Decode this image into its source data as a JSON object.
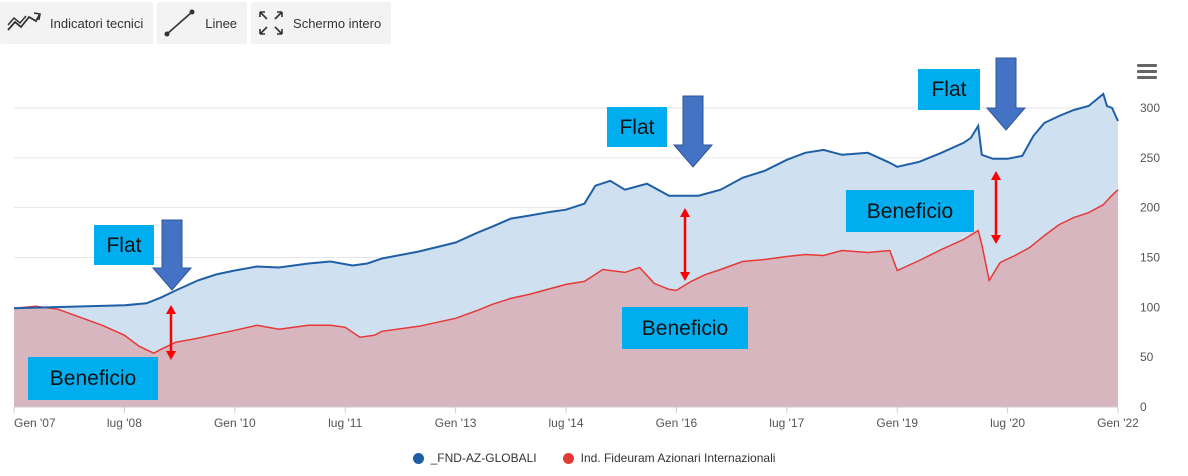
{
  "toolbar": {
    "indicators_label": "Indicatori tecnici",
    "lines_label": "Linee",
    "fullscreen_label": "Schermo intero"
  },
  "colors": {
    "fund_line": "#1f5fa6",
    "fund_fill": "#cfe0f0",
    "index_line": "#e53935",
    "index_fill": "#d8b6c0",
    "arrow_blue": "#4472c4",
    "arrow_red": "#ff0000",
    "callout_bg": "#00aeef"
  },
  "annotations": {
    "flat_1": "Flat",
    "flat_2": "Flat",
    "flat_3": "Flat",
    "beneficio_1": "Beneficio",
    "beneficio_2": "Beneficio",
    "beneficio_3": "Beneficio"
  },
  "chart_data": {
    "type": "area",
    "title": "",
    "xlabel": "",
    "ylabel": "",
    "xlim": [
      2007.0,
      2022.0
    ],
    "ylim": [
      0,
      300
    ],
    "y_axis_side": "right",
    "yticks": [
      0,
      50,
      100,
      150,
      200,
      250,
      300
    ],
    "xtick_labels": [
      {
        "t": 2007.0,
        "label": "Gen '07"
      },
      {
        "t": 2008.5,
        "label": "lug '08"
      },
      {
        "t": 2010.0,
        "label": "Gen '10"
      },
      {
        "t": 2011.5,
        "label": "lug '11"
      },
      {
        "t": 2013.0,
        "label": "Gen '13"
      },
      {
        "t": 2014.5,
        "label": "lug '14"
      },
      {
        "t": 2016.0,
        "label": "Gen '16"
      },
      {
        "t": 2017.5,
        "label": "lug '17"
      },
      {
        "t": 2019.0,
        "label": "Gen '19"
      },
      {
        "t": 2020.5,
        "label": "lug '20"
      },
      {
        "t": 2022.0,
        "label": "Gen '22"
      }
    ],
    "grid": true,
    "legend": "bottom",
    "series": [
      {
        "name": "_FND-AZ-GLOBALI",
        "x": [
          2007.0,
          2007.5,
          2008.0,
          2008.5,
          2008.8,
          2009.0,
          2009.2,
          2009.5,
          2009.75,
          2010.0,
          2010.3,
          2010.6,
          2011.0,
          2011.3,
          2011.6,
          2011.8,
          2012.0,
          2012.5,
          2013.0,
          2013.3,
          2013.5,
          2013.75,
          2014.0,
          2014.3,
          2014.5,
          2014.75,
          2014.9,
          2015.1,
          2015.3,
          2015.6,
          2015.9,
          2016.0,
          2016.3,
          2016.6,
          2016.9,
          2017.2,
          2017.5,
          2017.75,
          2018.0,
          2018.25,
          2018.6,
          2018.9,
          2019.0,
          2019.3,
          2019.6,
          2019.9,
          2020.0,
          2020.1,
          2020.15,
          2020.3,
          2020.5,
          2020.7,
          2020.85,
          2021.0,
          2021.2,
          2021.4,
          2021.6,
          2021.8,
          2021.85,
          2021.92,
          2022.0
        ],
        "y": [
          99,
          100,
          101,
          102,
          104,
          110,
          117,
          127,
          133,
          137,
          141,
          140,
          144,
          146,
          142,
          144,
          149,
          156,
          165,
          175,
          181,
          189,
          192,
          196,
          198,
          204,
          222,
          227,
          218,
          224,
          212,
          212,
          212,
          218,
          230,
          237,
          248,
          255,
          258,
          253,
          255,
          245,
          241,
          246,
          255,
          265,
          270,
          282,
          253,
          249,
          249,
          252,
          272,
          285,
          292,
          298,
          302,
          314,
          302,
          300,
          287
        ]
      },
      {
        "name": "Ind. Fideuram Azionari Internazionali",
        "x": [
          2007.0,
          2007.3,
          2007.6,
          2007.9,
          2008.2,
          2008.5,
          2008.7,
          2008.9,
          2009.0,
          2009.2,
          2009.5,
          2009.75,
          2010.0,
          2010.3,
          2010.6,
          2011.0,
          2011.3,
          2011.5,
          2011.7,
          2011.9,
          2012.0,
          2012.5,
          2013.0,
          2013.3,
          2013.5,
          2013.75,
          2014.0,
          2014.3,
          2014.5,
          2014.75,
          2015.0,
          2015.3,
          2015.5,
          2015.7,
          2015.9,
          2016.0,
          2016.2,
          2016.4,
          2016.6,
          2016.9,
          2017.2,
          2017.5,
          2017.75,
          2018.0,
          2018.25,
          2018.6,
          2018.9,
          2019.0,
          2019.3,
          2019.6,
          2019.9,
          2020.1,
          2020.15,
          2020.25,
          2020.4,
          2020.6,
          2020.8,
          2021.0,
          2021.2,
          2021.4,
          2021.6,
          2021.8,
          2021.9,
          2022.0
        ],
        "y": [
          99,
          101,
          98,
          90,
          82,
          72,
          61,
          54,
          58,
          65,
          69,
          73,
          77,
          82,
          78,
          82,
          82,
          80,
          70,
          72,
          76,
          81,
          89,
          97,
          103,
          109,
          113,
          119,
          123,
          126,
          138,
          135,
          140,
          124,
          118,
          117,
          126,
          133,
          138,
          146,
          148,
          151,
          153,
          152,
          157,
          155,
          157,
          137,
          147,
          158,
          168,
          177,
          163,
          127,
          145,
          152,
          160,
          172,
          183,
          190,
          195,
          203,
          211,
          218
        ]
      }
    ]
  }
}
